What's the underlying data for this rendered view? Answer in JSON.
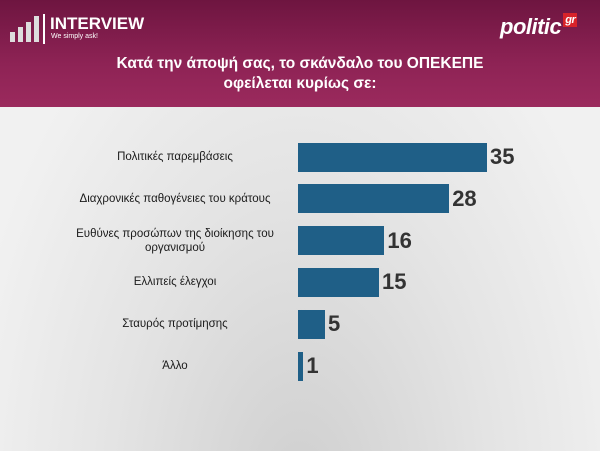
{
  "brand": {
    "name": "INTERVIEW",
    "tagline": "We simply ask!",
    "partner": "politic",
    "partner_suffix": "gr"
  },
  "chart_data": {
    "type": "bar",
    "orientation": "horizontal",
    "title": "Κατά την άποψή σας, το σκάνδαλο του ΟΠΕΚΕΠΕ οφείλεται κυρίως σε:",
    "categories": [
      "Πολιτικές παρεμβάσεις",
      "Διαχρονικές παθογένειες του κράτους",
      "Ευθύνες προσώπων της διοίκησης του οργανισμού",
      "Ελλιπείς έλεγχοι",
      "Σταυρός προτίμησης",
      "Άλλο"
    ],
    "values": [
      35,
      28,
      16,
      15,
      5,
      1
    ],
    "color": "#1f5f87"
  }
}
